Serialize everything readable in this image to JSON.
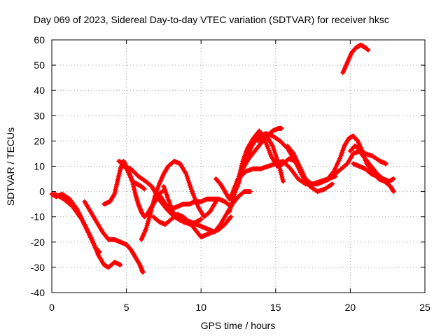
{
  "chart_data": {
    "type": "scatter",
    "title": "Day 069 of 2023, Sidereal Day-to-day VTEC variation (SDTVAR) for receiver hksc",
    "xlabel": "GPS time / hours",
    "ylabel": "SDTVAR / TECUs",
    "xlim": [
      0,
      25
    ],
    "ylim": [
      -40,
      60
    ],
    "xticks": [
      0,
      5,
      10,
      15,
      20,
      25
    ],
    "yticks": [
      -40,
      -30,
      -20,
      -10,
      0,
      10,
      20,
      30,
      40,
      50,
      60
    ],
    "grid": true,
    "marker": "+",
    "color": "#ff0000",
    "series": [
      {
        "name": "track-1",
        "x": [
          0.0,
          0.3,
          0.7,
          1.2,
          1.7,
          2.2,
          2.7,
          3.1,
          3.5,
          3.8,
          4.2,
          4.6
        ],
        "y": [
          -1,
          -2,
          -1,
          -3,
          -7,
          -13,
          -19,
          -25,
          -29,
          -30,
          -28,
          -29
        ]
      },
      {
        "name": "track-2",
        "x": [
          0.2,
          0.8,
          1.4,
          2.0,
          2.5,
          2.9,
          3.2
        ],
        "y": [
          -1,
          -3,
          -6,
          -11,
          -17,
          -22,
          -24
        ]
      },
      {
        "name": "track-3",
        "x": [
          2.2,
          2.6,
          3.0,
          3.4,
          3.8,
          4.2,
          4.6,
          5.0,
          5.3,
          5.6,
          5.9,
          6.1
        ],
        "y": [
          -4,
          -8,
          -12,
          -16,
          -19,
          -19,
          -20,
          -21,
          -23,
          -26,
          -29,
          -32
        ]
      },
      {
        "name": "track-4",
        "x": [
          3.5,
          3.9,
          4.2,
          4.4,
          4.6,
          4.8,
          4.9,
          5.1,
          5.4,
          5.7,
          6.0,
          6.2
        ],
        "y": [
          -5,
          -4,
          -1,
          4,
          9,
          12,
          11,
          8,
          4,
          3,
          2,
          1
        ]
      },
      {
        "name": "track-5",
        "x": [
          4.5,
          4.8,
          5.1,
          5.4,
          5.6,
          5.8,
          6.0,
          6.2,
          6.4,
          6.6,
          6.8,
          7.0,
          7.2,
          7.4
        ],
        "y": [
          12,
          11,
          9,
          4,
          -1,
          -5,
          -8,
          -10,
          -9,
          -7,
          -5,
          -3,
          -1,
          0
        ]
      },
      {
        "name": "track-6",
        "x": [
          4.8,
          5.3,
          5.8,
          6.3,
          6.7,
          7.0,
          7.3,
          7.7,
          8.2,
          8.8,
          9.3,
          9.7,
          10.0
        ],
        "y": [
          10,
          9,
          6,
          4,
          2,
          -1,
          -4,
          -7,
          -10,
          -12,
          -13,
          -12,
          -11
        ]
      },
      {
        "name": "track-7",
        "x": [
          6.0,
          6.3,
          6.6,
          6.9,
          7.2,
          7.5,
          7.8,
          8.2,
          8.6,
          9.0,
          9.4,
          9.8,
          10.2,
          10.6,
          11.0
        ],
        "y": [
          -19,
          -15,
          -9,
          -2,
          3,
          7,
          10,
          12,
          11,
          7,
          0,
          -6,
          -10,
          -8,
          -4
        ]
      },
      {
        "name": "track-8",
        "x": [
          7.3,
          7.6,
          8.0,
          8.4,
          8.8,
          9.2,
          9.6,
          10.0,
          10.4,
          10.8,
          11.2,
          11.6,
          12.0
        ],
        "y": [
          -2,
          -5,
          -7,
          -6,
          -5,
          -5,
          -4,
          -4,
          -3,
          -3,
          -3,
          -4,
          -6
        ]
      },
      {
        "name": "track-9",
        "x": [
          6.8,
          7.2,
          7.6,
          8.0,
          8.4,
          8.8,
          9.2,
          9.6,
          10.0,
          10.4,
          10.8,
          11.2,
          11.6,
          12.0
        ],
        "y": [
          -10,
          -12,
          -13,
          -11,
          -9,
          -10,
          -12,
          -15,
          -18,
          -17,
          -16,
          -15,
          -13,
          -10
        ]
      },
      {
        "name": "track-10",
        "x": [
          7.5,
          7.8,
          8.1,
          8.5,
          8.9,
          9.3,
          9.7,
          10.1,
          10.5,
          10.9,
          11.3,
          11.7,
          12.1,
          12.5,
          12.9,
          13.3
        ],
        "y": [
          2,
          -3,
          -8,
          -11,
          -12,
          -12,
          -13,
          -14,
          -15,
          -16,
          -13,
          -9,
          -5,
          -2,
          0,
          0
        ]
      },
      {
        "name": "track-11",
        "x": [
          11.0,
          11.3,
          11.6,
          11.9,
          12.2,
          12.5,
          12.8,
          13.1,
          13.4,
          13.7,
          14.0,
          14.4,
          14.8,
          15.2,
          15.5
        ],
        "y": [
          5,
          3,
          0,
          -3,
          -1,
          3,
          9,
          14,
          18,
          21,
          23,
          22,
          18,
          11,
          4
        ]
      },
      {
        "name": "track-12",
        "x": [
          11.9,
          12.2,
          12.5,
          12.8,
          13.1,
          13.5,
          13.9,
          14.3,
          14.7,
          15.1,
          15.5,
          15.9,
          16.3,
          16.7,
          17.0
        ],
        "y": [
          -8,
          -2,
          5,
          12,
          17,
          21,
          24,
          20,
          14,
          10,
          11,
          13,
          12,
          8,
          4
        ]
      },
      {
        "name": "track-13",
        "x": [
          12.0,
          12.4,
          12.8,
          13.2,
          13.6,
          14.0,
          14.4,
          14.8,
          15.2,
          15.4
        ],
        "y": [
          -2,
          4,
          9,
          13,
          16,
          19,
          22,
          24,
          25,
          25
        ]
      },
      {
        "name": "track-14",
        "x": [
          13.8,
          14.3,
          14.8,
          15.3,
          15.8,
          16.3,
          16.8,
          17.3,
          17.8,
          18.3,
          18.8
        ],
        "y": [
          20,
          23,
          22,
          20,
          17,
          12,
          6,
          2,
          0,
          1,
          3
        ]
      },
      {
        "name": "track-15",
        "x": [
          12.5,
          13.0,
          13.5,
          14.0,
          14.5,
          15.0,
          15.5,
          16.0,
          16.5,
          17.0,
          17.5,
          18.0,
          18.5,
          19.0
        ],
        "y": [
          5,
          8,
          9,
          9,
          10,
          11,
          12,
          9,
          5,
          3,
          3,
          4,
          5,
          6
        ]
      },
      {
        "name": "track-16",
        "x": [
          15.8,
          16.2,
          16.6,
          17.0,
          17.4,
          17.8,
          18.2,
          18.6,
          19.0,
          19.4,
          19.8,
          20.2,
          20.6,
          21.0,
          21.4,
          21.8,
          22.2,
          22.6
        ],
        "y": [
          18,
          15,
          10,
          5,
          3,
          3,
          4,
          5,
          7,
          9,
          11,
          15,
          16,
          13,
          10,
          7,
          5,
          4
        ]
      },
      {
        "name": "track-17",
        "x": [
          18.5,
          18.9,
          19.3,
          19.6,
          19.9,
          20.2,
          20.5,
          20.8,
          21.1,
          21.5,
          21.9,
          22.3,
          22.7,
          22.9
        ],
        "y": [
          5,
          8,
          13,
          18,
          21,
          22,
          20,
          16,
          11,
          8,
          5,
          4,
          2,
          0
        ]
      },
      {
        "name": "track-18",
        "x": [
          20.0,
          20.3,
          20.6,
          21.0,
          21.5,
          22.0,
          22.4
        ],
        "y": [
          16,
          18,
          17,
          15,
          14,
          12,
          11
        ]
      },
      {
        "name": "track-19",
        "x": [
          20.2,
          20.6,
          21.0,
          21.4,
          21.8,
          22.2,
          22.6,
          22.9
        ],
        "y": [
          11,
          10,
          9,
          7,
          6,
          5,
          4,
          5
        ]
      },
      {
        "name": "track-20",
        "x": [
          19.5,
          19.8,
          20.1,
          20.4,
          20.7,
          21.0,
          21.2
        ],
        "y": [
          47,
          51,
          55,
          57,
          58,
          57,
          56
        ]
      }
    ]
  }
}
